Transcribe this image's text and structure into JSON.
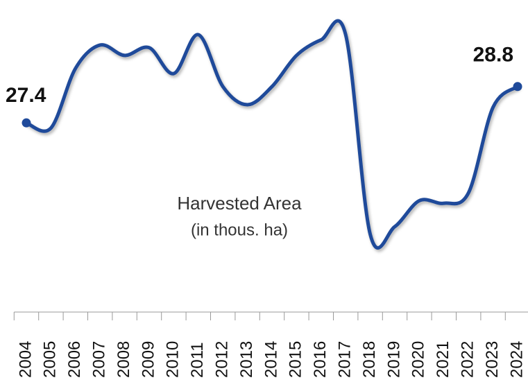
{
  "chart_data": {
    "type": "line",
    "title": "Harvested Area",
    "subtitle": "(in thous. ha)",
    "categories": [
      "2004",
      "2005",
      "2006",
      "2007",
      "2008",
      "2009",
      "2010",
      "2011",
      "2012",
      "2013",
      "2014",
      "2015",
      "2016",
      "2017",
      "2018",
      "2019",
      "2020",
      "2021",
      "2022",
      "2023",
      "2024"
    ],
    "values": [
      27.4,
      27.2,
      29.5,
      30.4,
      30.0,
      30.3,
      29.3,
      30.8,
      28.8,
      28.1,
      28.8,
      30.0,
      30.6,
      30.8,
      23.1,
      23.4,
      24.4,
      24.3,
      24.7,
      28.0,
      28.8
    ],
    "color": "#1f4a9a"
  }
}
